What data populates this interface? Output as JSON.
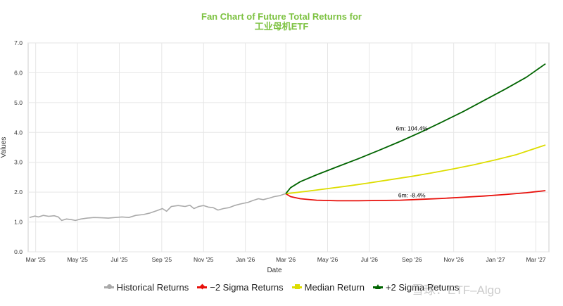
{
  "chart_data": {
    "type": "line",
    "title": "Fan Chart of Future Total Returns for",
    "subtitle": "工业母机ETF",
    "xlabel": "Date",
    "ylabel": "Values",
    "ylim": [
      0,
      7
    ],
    "y_ticks": [
      "0.0",
      "1.0",
      "2.0",
      "3.0",
      "4.0",
      "5.0",
      "6.0",
      "7.0"
    ],
    "x_ticks": [
      "Mar '25",
      "May '25",
      "Jul '25",
      "Sep '25",
      "Nov '25",
      "Jan '26",
      "Mar '26",
      "May '26",
      "Jul '26",
      "Sep '26",
      "Nov '26",
      "Jan '27",
      "Mar '27"
    ],
    "x_tick_dates": [
      "2025-03-01",
      "2025-05-01",
      "2025-07-01",
      "2025-09-01",
      "2025-11-01",
      "2026-01-01",
      "2026-03-01",
      "2026-05-01",
      "2026-07-01",
      "2026-09-01",
      "2026-11-01",
      "2027-01-01",
      "2027-03-01"
    ],
    "xlim": [
      "2025-02-18",
      "2027-03-20"
    ],
    "grid": true,
    "legend_position": "bottom",
    "series": [
      {
        "name": "Historical Returns",
        "color": "#aaaaaa",
        "marker": "circle",
        "points": [
          [
            "2025-02-20",
            1.15
          ],
          [
            "2025-02-28",
            1.2
          ],
          [
            "2025-03-05",
            1.17
          ],
          [
            "2025-03-12",
            1.22
          ],
          [
            "2025-03-20",
            1.19
          ],
          [
            "2025-03-28",
            1.21
          ],
          [
            "2025-04-03",
            1.17
          ],
          [
            "2025-04-08",
            1.05
          ],
          [
            "2025-04-15",
            1.1
          ],
          [
            "2025-04-22",
            1.08
          ],
          [
            "2025-04-28",
            1.05
          ],
          [
            "2025-05-06",
            1.1
          ],
          [
            "2025-05-15",
            1.13
          ],
          [
            "2025-05-25",
            1.15
          ],
          [
            "2025-06-05",
            1.14
          ],
          [
            "2025-06-15",
            1.13
          ],
          [
            "2025-06-25",
            1.15
          ],
          [
            "2025-07-05",
            1.17
          ],
          [
            "2025-07-15",
            1.15
          ],
          [
            "2025-07-25",
            1.22
          ],
          [
            "2025-08-05",
            1.25
          ],
          [
            "2025-08-15",
            1.3
          ],
          [
            "2025-08-25",
            1.38
          ],
          [
            "2025-09-02",
            1.45
          ],
          [
            "2025-09-08",
            1.36
          ],
          [
            "2025-09-15",
            1.52
          ],
          [
            "2025-09-25",
            1.55
          ],
          [
            "2025-10-05",
            1.52
          ],
          [
            "2025-10-12",
            1.56
          ],
          [
            "2025-10-18",
            1.45
          ],
          [
            "2025-10-25",
            1.52
          ],
          [
            "2025-11-01",
            1.55
          ],
          [
            "2025-11-08",
            1.5
          ],
          [
            "2025-11-15",
            1.48
          ],
          [
            "2025-11-22",
            1.4
          ],
          [
            "2025-11-30",
            1.45
          ],
          [
            "2025-12-08",
            1.48
          ],
          [
            "2025-12-16",
            1.55
          ],
          [
            "2025-12-24",
            1.6
          ],
          [
            "2026-01-05",
            1.66
          ],
          [
            "2026-01-12",
            1.72
          ],
          [
            "2026-01-20",
            1.78
          ],
          [
            "2026-01-27",
            1.75
          ],
          [
            "2026-02-05",
            1.8
          ],
          [
            "2026-02-12",
            1.85
          ],
          [
            "2026-02-20",
            1.88
          ],
          [
            "2026-02-26",
            1.93
          ],
          [
            "2026-03-01",
            1.95
          ]
        ]
      },
      {
        "name": "−2 Sigma Returns",
        "color": "#e8100b",
        "marker": "diamond",
        "points": [
          [
            "2026-03-01",
            1.95
          ],
          [
            "2026-03-08",
            1.85
          ],
          [
            "2026-03-22",
            1.78
          ],
          [
            "2026-04-15",
            1.73
          ],
          [
            "2026-05-15",
            1.71
          ],
          [
            "2026-06-15",
            1.71
          ],
          [
            "2026-07-15",
            1.72
          ],
          [
            "2026-08-15",
            1.73
          ],
          [
            "2026-09-15",
            1.76
          ],
          [
            "2026-10-15",
            1.79
          ],
          [
            "2026-11-15",
            1.83
          ],
          [
            "2026-12-15",
            1.87
          ],
          [
            "2027-01-15",
            1.92
          ],
          [
            "2027-02-15",
            1.98
          ],
          [
            "2027-03-15",
            2.05
          ]
        ]
      },
      {
        "name": "Median Return",
        "color": "#dddd00",
        "marker": "square",
        "points": [
          [
            "2026-03-01",
            1.95
          ],
          [
            "2026-04-01",
            2.03
          ],
          [
            "2026-05-01",
            2.12
          ],
          [
            "2026-06-01",
            2.21
          ],
          [
            "2026-07-01",
            2.31
          ],
          [
            "2026-08-01",
            2.42
          ],
          [
            "2026-09-01",
            2.53
          ],
          [
            "2026-10-01",
            2.65
          ],
          [
            "2026-11-01",
            2.78
          ],
          [
            "2026-12-01",
            2.92
          ],
          [
            "2027-01-01",
            3.08
          ],
          [
            "2027-02-01",
            3.26
          ],
          [
            "2027-03-15",
            3.58
          ]
        ]
      },
      {
        "name": "+2 Sigma Returns",
        "color": "#006400",
        "marker": "triangle",
        "points": [
          [
            "2026-03-01",
            1.95
          ],
          [
            "2026-03-08",
            2.15
          ],
          [
            "2026-03-22",
            2.35
          ],
          [
            "2026-04-15",
            2.58
          ],
          [
            "2026-05-15",
            2.85
          ],
          [
            "2026-06-15",
            3.12
          ],
          [
            "2026-07-15",
            3.4
          ],
          [
            "2026-08-15",
            3.7
          ],
          [
            "2026-09-15",
            4.02
          ],
          [
            "2026-10-15",
            4.35
          ],
          [
            "2026-11-15",
            4.7
          ],
          [
            "2026-12-15",
            5.07
          ],
          [
            "2027-01-15",
            5.45
          ],
          [
            "2027-02-15",
            5.85
          ],
          [
            "2027-03-15",
            6.3
          ]
        ]
      }
    ],
    "annotations": [
      {
        "text": "6m: 104.4%",
        "x": "2026-09-01",
        "y": 4.0
      },
      {
        "text": "6m: -8.4%",
        "x": "2026-09-01",
        "y": 1.76
      }
    ]
  },
  "watermark": "雪球：ETF–Algo"
}
